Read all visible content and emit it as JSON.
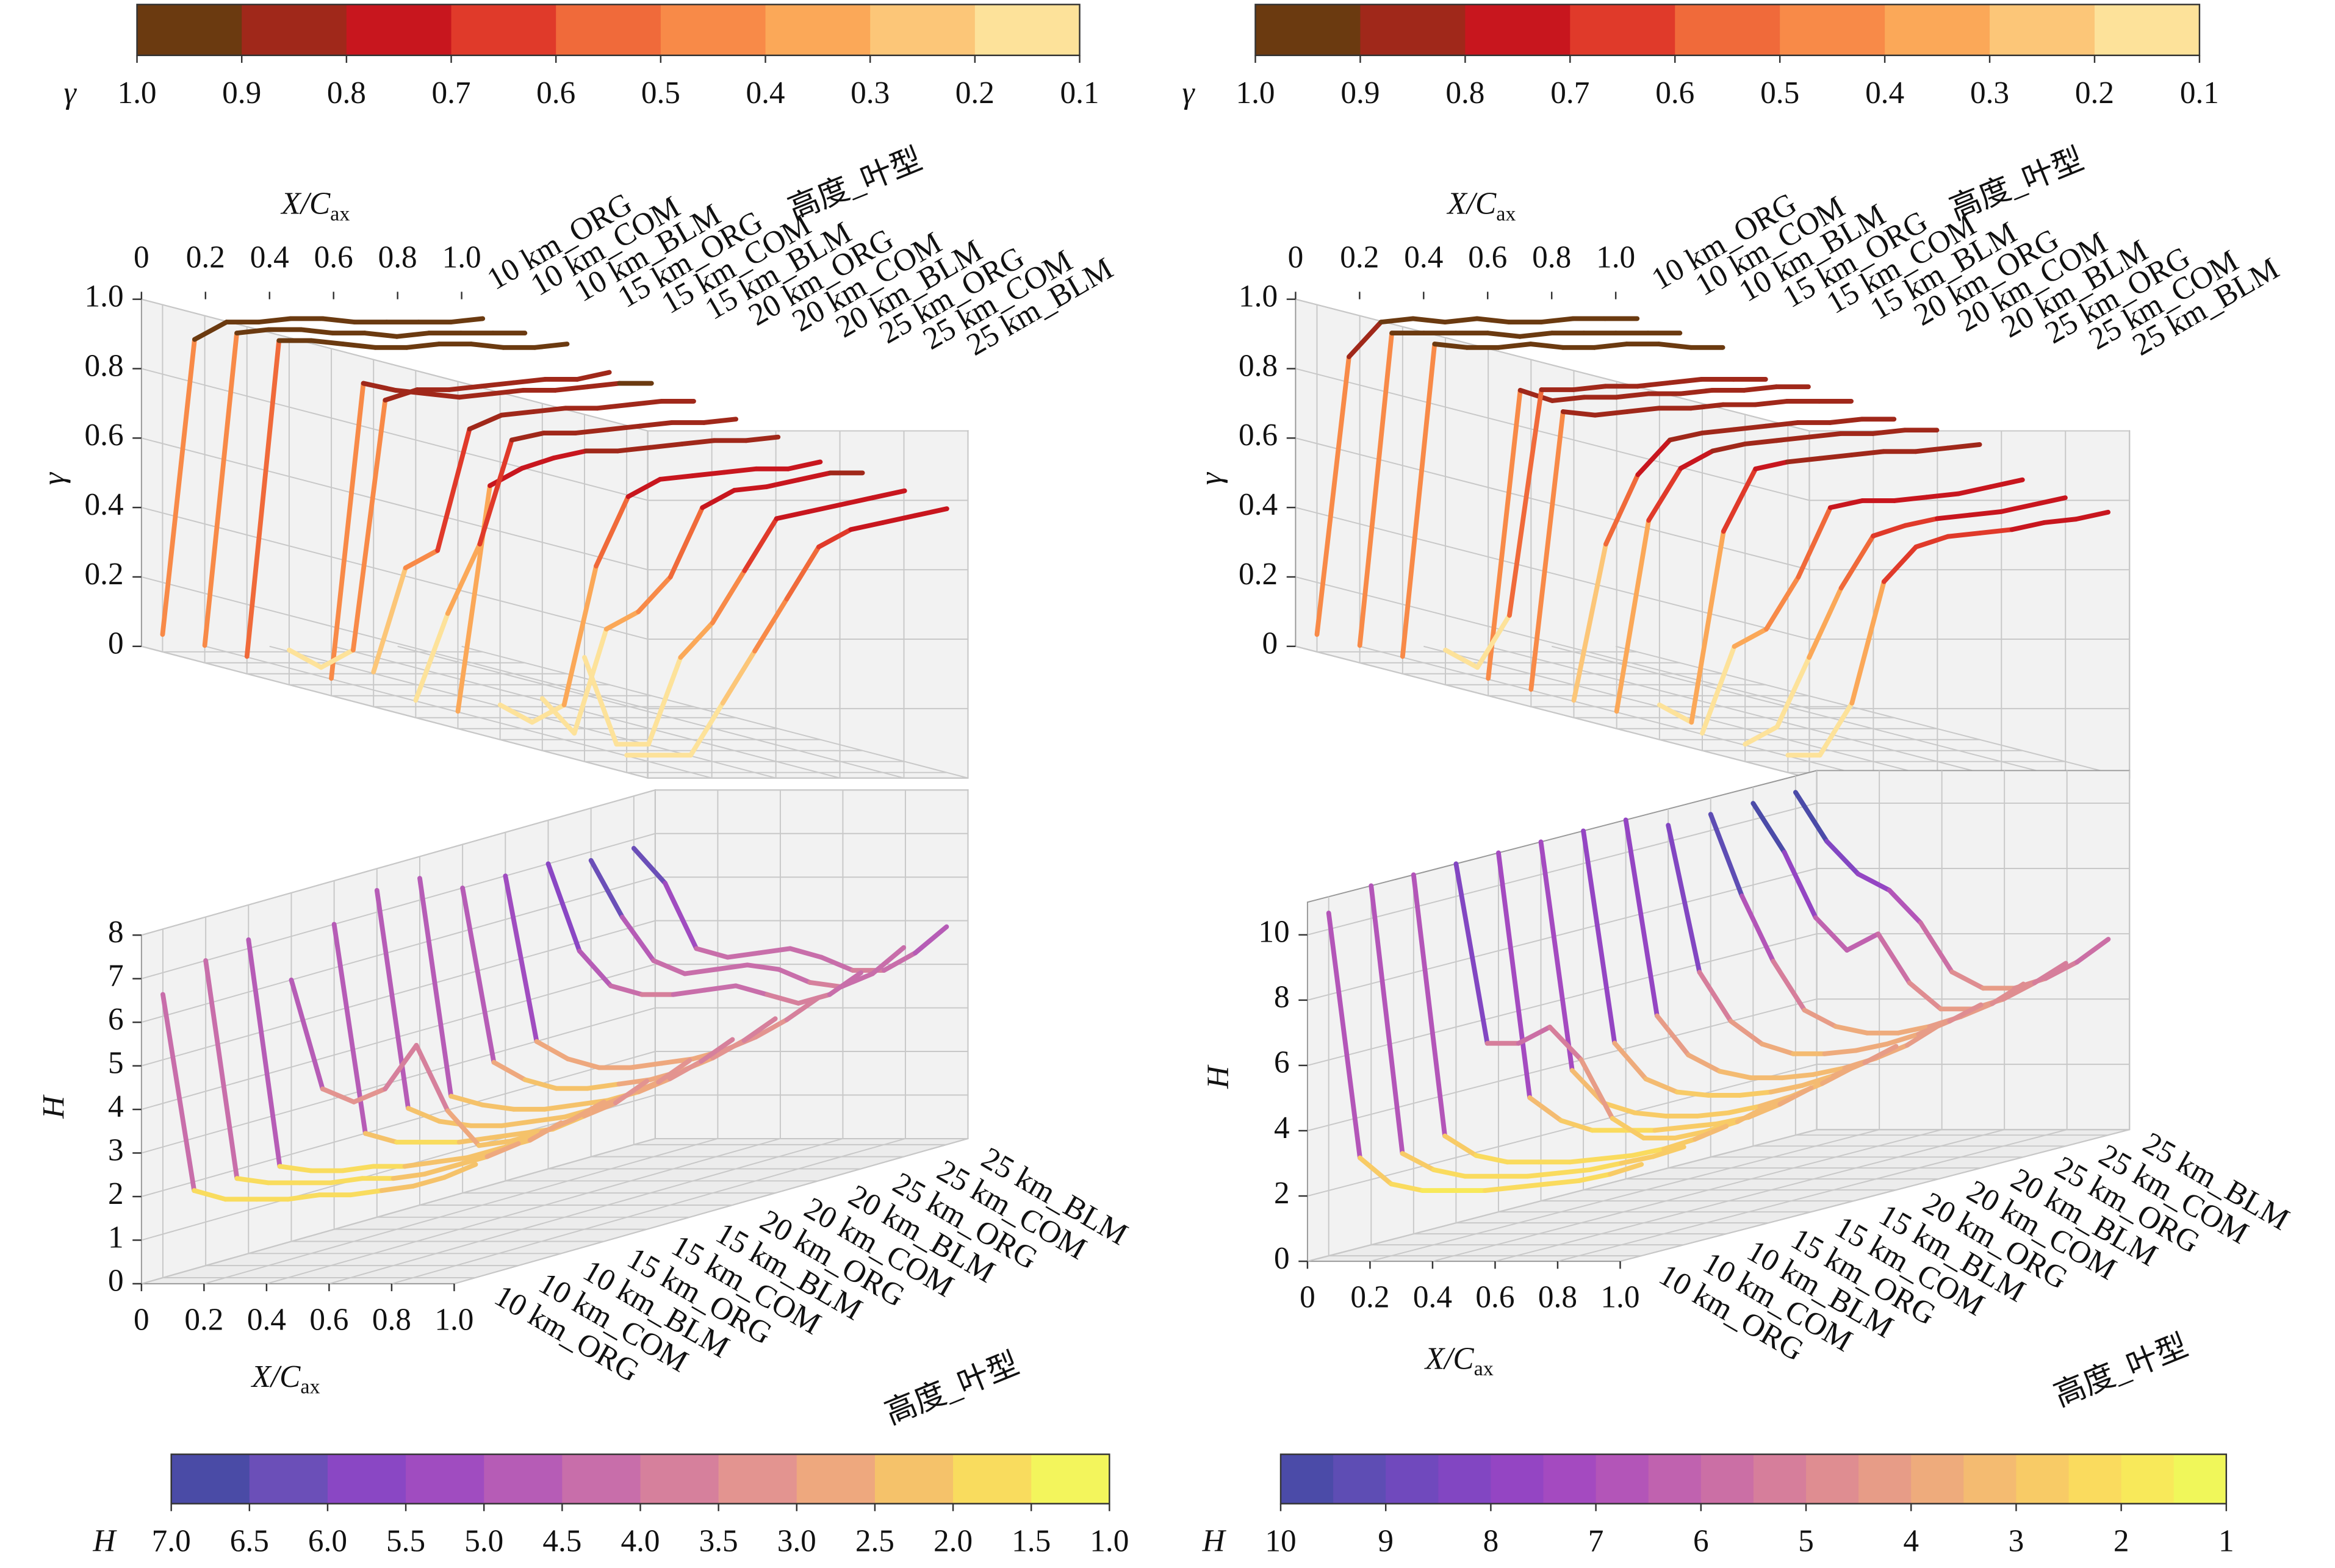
{
  "chart_data": [
    {
      "type": "line3d",
      "xlabel": "X/C",
      "xlabel_sub": "ax",
      "ylabel": "γ",
      "zlabel": "高度_叶型",
      "grid": true,
      "x": [
        0,
        0.1,
        0.2,
        0.3,
        0.4,
        0.5,
        0.6,
        0.7,
        0.8,
        0.9,
        1
      ],
      "xlim": [
        0,
        1
      ],
      "xticks": [
        0,
        0.2,
        0.4,
        0.6,
        0.8,
        {
          "value": 1,
          "label": "1.0"
        }
      ],
      "ylim": [
        0,
        1
      ],
      "yticks": [
        0,
        0.2,
        0.4,
        0.6,
        0.8,
        {
          "value": 1,
          "label": "1.0"
        }
      ],
      "series": [
        {
          "name": "10 km_ORG",
          "values": [
            0.05,
            0.9,
            0.95,
            0.95,
            0.96,
            0.96,
            0.95,
            0.95,
            0.95,
            0.95,
            0.96
          ]
        },
        {
          "name": "10 km_COM",
          "values": [
            0.05,
            0.95,
            0.96,
            0.96,
            0.95,
            0.95,
            0.94,
            0.95,
            0.95,
            0.95,
            0.95
          ]
        },
        {
          "name": "10 km_BLM",
          "values": [
            0.05,
            0.96,
            0.96,
            0.95,
            0.94,
            0.94,
            0.95,
            0.95,
            0.94,
            0.94,
            0.95
          ]
        },
        {
          "name": "15 km_ORG",
          "values": [
            0.1,
            0.05,
            0.1,
            0.82,
            0.85,
            0.85,
            0.86,
            0.87,
            0.88,
            0.88,
            0.9
          ]
        },
        {
          "name": "15 km_COM",
          "values": [
            0.05,
            0.9,
            0.88,
            0.87,
            0.86,
            0.87,
            0.88,
            0.88,
            0.89,
            0.9,
            0.9
          ]
        },
        {
          "name": "15 km_BLM",
          "values": [
            0.1,
            0.4,
            0.45,
            0.8,
            0.84,
            0.85,
            0.86,
            0.86,
            0.87,
            0.88,
            0.88
          ]
        },
        {
          "name": "20 km_ORG",
          "values": [
            0.05,
            0.3,
            0.5,
            0.8,
            0.82,
            0.82,
            0.83,
            0.84,
            0.85,
            0.85,
            0.86
          ]
        },
        {
          "name": "20 km_COM",
          "values": [
            0.05,
            0.7,
            0.75,
            0.78,
            0.8,
            0.8,
            0.81,
            0.82,
            0.83,
            0.83,
            0.84
          ]
        },
        {
          "name": "20 km_BLM",
          "values": [
            0.1,
            0.05,
            0.1,
            0.5,
            0.7,
            0.75,
            0.76,
            0.77,
            0.78,
            0.78,
            0.8
          ]
        },
        {
          "name": "25 km_ORG",
          "values": [
            0.15,
            0.05,
            0.35,
            0.4,
            0.5,
            0.7,
            0.75,
            0.76,
            0.78,
            0.8,
            0.8
          ]
        },
        {
          "name": "25 km_COM",
          "values": [
            0.3,
            0.05,
            0.05,
            0.3,
            0.4,
            0.55,
            0.7,
            0.72,
            0.74,
            0.76,
            0.78
          ]
        },
        {
          "name": "25 km_BLM",
          "values": [
            0.05,
            0.05,
            0.05,
            0.2,
            0.35,
            0.5,
            0.65,
            0.7,
            0.72,
            0.74,
            0.76
          ]
        }
      ],
      "colorbar": {
        "label": "γ",
        "lim": [
          1,
          0.1
        ],
        "ticks": [
          {
            "value": 1,
            "label": "1.0"
          },
          0.9,
          0.8,
          0.7,
          0.6,
          0.5,
          0.4,
          0.3,
          0.2,
          0.1
        ],
        "colors": [
          "#6b3a10",
          "#a0281a",
          "#c8161e",
          "#e03a2a",
          "#f06a3a",
          "#f88a48",
          "#fba858",
          "#fcc678",
          "#fde29a"
        ]
      }
    },
    {
      "type": "line3d",
      "xlabel": "X/C",
      "xlabel_sub": "ax",
      "ylabel": "γ",
      "zlabel": "高度_叶型",
      "grid": true,
      "x": [
        0,
        0.1,
        0.2,
        0.3,
        0.4,
        0.5,
        0.6,
        0.7,
        0.8,
        0.9,
        1
      ],
      "xlim": [
        0,
        1
      ],
      "xticks": [
        0,
        0.2,
        0.4,
        0.6,
        0.8,
        {
          "value": 1,
          "label": "1.0"
        }
      ],
      "ylim": [
        0,
        1
      ],
      "yticks": [
        0,
        0.2,
        0.4,
        0.6,
        0.8,
        {
          "value": 1,
          "label": "1.0"
        }
      ],
      "series": [
        {
          "name": "10 km_ORG",
          "values": [
            0.05,
            0.85,
            0.95,
            0.96,
            0.95,
            0.96,
            0.95,
            0.95,
            0.96,
            0.96,
            0.96
          ]
        },
        {
          "name": "10 km_COM",
          "values": [
            0.05,
            0.95,
            0.95,
            0.95,
            0.95,
            0.94,
            0.95,
            0.95,
            0.95,
            0.95,
            0.95
          ]
        },
        {
          "name": "10 km_BLM",
          "values": [
            0.05,
            0.95,
            0.94,
            0.94,
            0.95,
            0.94,
            0.94,
            0.95,
            0.95,
            0.94,
            0.94
          ]
        },
        {
          "name": "15 km_ORG",
          "values": [
            0.1,
            0.05,
            0.2,
            0.85,
            0.85,
            0.86,
            0.86,
            0.87,
            0.88,
            0.88,
            0.88
          ]
        },
        {
          "name": "15 km_COM",
          "values": [
            0.05,
            0.88,
            0.85,
            0.86,
            0.86,
            0.87,
            0.87,
            0.88,
            0.88,
            0.89,
            0.89
          ]
        },
        {
          "name": "15 km_BLM",
          "values": [
            0.05,
            0.85,
            0.84,
            0.85,
            0.86,
            0.86,
            0.87,
            0.87,
            0.88,
            0.88,
            0.88
          ]
        },
        {
          "name": "20 km_ORG",
          "values": [
            0.05,
            0.5,
            0.7,
            0.8,
            0.82,
            0.83,
            0.84,
            0.85,
            0.85,
            0.86,
            0.86
          ]
        },
        {
          "name": "20 km_COM",
          "values": [
            0.05,
            0.6,
            0.75,
            0.8,
            0.82,
            0.83,
            0.84,
            0.85,
            0.85,
            0.86,
            0.86
          ]
        },
        {
          "name": "20 km_BLM",
          "values": [
            0.1,
            0.05,
            0.6,
            0.78,
            0.8,
            0.81,
            0.82,
            0.83,
            0.83,
            0.84,
            0.85
          ]
        },
        {
          "name": "25 km_ORG",
          "values": [
            0.05,
            0.3,
            0.35,
            0.5,
            0.7,
            0.72,
            0.72,
            0.73,
            0.74,
            0.76,
            0.78
          ]
        },
        {
          "name": "25 km_COM",
          "values": [
            0.05,
            0.1,
            0.3,
            0.5,
            0.65,
            0.68,
            0.7,
            0.71,
            0.72,
            0.74,
            0.76
          ]
        },
        {
          "name": "25 km_BLM",
          "values": [
            0.05,
            0.05,
            0.2,
            0.55,
            0.65,
            0.68,
            0.69,
            0.7,
            0.72,
            0.73,
            0.75
          ]
        }
      ],
      "colorbar": {
        "label": "γ",
        "lim": [
          1,
          0.1
        ],
        "ticks": [
          {
            "value": 1,
            "label": "1.0"
          },
          0.9,
          0.8,
          0.7,
          0.6,
          0.5,
          0.4,
          0.3,
          0.2,
          0.1
        ],
        "colors": [
          "#6b3a10",
          "#a0281a",
          "#c8161e",
          "#e03a2a",
          "#f06a3a",
          "#f88a48",
          "#fba858",
          "#fcc678",
          "#fde29a"
        ]
      }
    },
    {
      "type": "line3d",
      "xlabel": "X/C",
      "xlabel_sub": "ax",
      "ylabel": "H",
      "zlabel": "高度_叶型",
      "grid": true,
      "x": [
        0,
        0.1,
        0.2,
        0.3,
        0.4,
        0.5,
        0.6,
        0.7,
        0.8,
        0.9,
        1
      ],
      "xlim": [
        0,
        1
      ],
      "xticks": [
        0,
        0.2,
        0.4,
        0.6,
        0.8,
        {
          "value": 1,
          "label": "1.0"
        }
      ],
      "ylim": [
        0,
        8
      ],
      "yticks": [
        0,
        1,
        2,
        3,
        4,
        5,
        6,
        7,
        8
      ],
      "series": [
        {
          "name": "10 km_ORG",
          "values": [
            6.5,
            2,
            1.8,
            1.8,
            1.8,
            1.9,
            1.9,
            2,
            2.1,
            2.3,
            2.6
          ]
        },
        {
          "name": "10 km_COM",
          "values": [
            7,
            2,
            1.9,
            1.9,
            1.9,
            2,
            2,
            2.1,
            2.3,
            2.5,
            2.8
          ]
        },
        {
          "name": "10 km_BLM",
          "values": [
            7.2,
            2,
            1.9,
            1.9,
            2,
            2,
            2.1,
            2.2,
            2.4,
            2.6,
            3
          ]
        },
        {
          "name": "15 km_ORG",
          "values": [
            6,
            3.5,
            3.2,
            3.5,
            4.5,
            3,
            2.2,
            2.3,
            2.5,
            2.8,
            3.2
          ]
        },
        {
          "name": "15 km_COM",
          "values": [
            7,
            2.2,
            2,
            2,
            2,
            2.1,
            2.2,
            2.3,
            2.6,
            2.9,
            3.4
          ]
        },
        {
          "name": "15 km_BLM",
          "values": [
            7.5,
            2.5,
            2.2,
            2.1,
            2.1,
            2.2,
            2.3,
            2.5,
            2.8,
            3.1,
            3.6
          ]
        },
        {
          "name": "20 km_ORG",
          "values": [
            7.5,
            2.5,
            2.3,
            2.2,
            2.2,
            2.3,
            2.4,
            2.6,
            2.9,
            3.3,
            3.8
          ]
        },
        {
          "name": "20 km_COM",
          "values": [
            7,
            3,
            2.6,
            2.4,
            2.4,
            2.5,
            2.6,
            2.8,
            3.1,
            3.5,
            4
          ]
        },
        {
          "name": "20 km_BLM",
          "values": [
            7,
            3.2,
            2.8,
            2.6,
            2.6,
            2.7,
            2.8,
            3,
            3.3,
            3.7,
            4.2
          ]
        },
        {
          "name": "25 km_ORG",
          "values": [
            7,
            5,
            4.2,
            4,
            4,
            4.1,
            4.2,
            4,
            3.8,
            4,
            4.5
          ]
        },
        {
          "name": "25 km_COM",
          "values": [
            6.8,
            5.5,
            4.5,
            4.2,
            4.3,
            4.4,
            4.3,
            4,
            3.9,
            4.2,
            4.8
          ]
        },
        {
          "name": "25 km_BLM",
          "values": [
            6.8,
            6,
            4.5,
            4.3,
            4.4,
            4.5,
            4.3,
            4,
            4,
            4.4,
            5
          ]
        }
      ],
      "colorbar": {
        "label": "H",
        "lim": [
          7,
          1
        ],
        "ticks": [
          {
            "value": 7,
            "label": "7.0"
          },
          6.5,
          {
            "value": 6,
            "label": "6.0"
          },
          5.5,
          {
            "value": 5,
            "label": "5.0"
          },
          4.5,
          {
            "value": 4,
            "label": "4.0"
          },
          3.5,
          {
            "value": 3,
            "label": "3.0"
          },
          2.5,
          {
            "value": 2,
            "label": "2.0"
          },
          1.5,
          {
            "value": 1,
            "label": "1.0"
          }
        ],
        "colors": [
          "#4a4ba6",
          "#6b4fb8",
          "#8a47c4",
          "#a04cc0",
          "#b65cb6",
          "#c86eaa",
          "#d6809c",
          "#e39490",
          "#eea87e",
          "#f5c26a",
          "#f9dc5e",
          "#f3f55c"
        ]
      }
    },
    {
      "type": "line3d",
      "xlabel": "X/C",
      "xlabel_sub": "ax",
      "ylabel": "H",
      "zlabel": "高度_叶型",
      "grid": true,
      "x": [
        0,
        0.1,
        0.2,
        0.3,
        0.4,
        0.5,
        0.6,
        0.7,
        0.8,
        0.9,
        1
      ],
      "xlim": [
        0,
        1
      ],
      "xticks": [
        0,
        0.2,
        0.4,
        0.6,
        0.8,
        {
          "value": 1,
          "label": "1.0"
        }
      ],
      "ylim": [
        0,
        11
      ],
      "yticks": [
        0,
        2,
        4,
        6,
        8,
        10
      ],
      "series": [
        {
          "name": "10 km_ORG",
          "values": [
            10.5,
            3,
            2.2,
            2,
            2,
            2,
            2.1,
            2.2,
            2.3,
            2.5,
            2.8
          ]
        },
        {
          "name": "10 km_COM",
          "values": [
            11,
            2.8,
            2.3,
            2.1,
            2.1,
            2.1,
            2.2,
            2.3,
            2.5,
            2.7,
            3
          ]
        },
        {
          "name": "10 km_BLM",
          "values": [
            11,
            3,
            2.4,
            2.2,
            2.2,
            2.2,
            2.3,
            2.4,
            2.6,
            2.9,
            3.3
          ]
        },
        {
          "name": "15 km_ORG",
          "values": [
            11,
            5.5,
            5.5,
            6,
            5,
            3.2,
            2.6,
            2.6,
            2.8,
            3.1,
            3.6
          ]
        },
        {
          "name": "15 km_COM",
          "values": [
            11,
            3.5,
            2.8,
            2.5,
            2.5,
            2.5,
            2.6,
            2.7,
            2.9,
            3.3,
            3.8
          ]
        },
        {
          "name": "15 km_BLM",
          "values": [
            11,
            4,
            3,
            2.7,
            2.6,
            2.6,
            2.7,
            2.9,
            3.2,
            3.6,
            4.1
          ]
        },
        {
          "name": "20 km_ORG",
          "values": [
            11,
            4.5,
            3.4,
            3,
            2.9,
            2.9,
            3,
            3.2,
            3.5,
            3.9,
            4.4
          ]
        },
        {
          "name": "20 km_COM",
          "values": [
            11,
            5,
            3.8,
            3.3,
            3.1,
            3.1,
            3.2,
            3.4,
            3.7,
            4.1,
            4.7
          ]
        },
        {
          "name": "20 km_BLM",
          "values": [
            10.5,
            6,
            4.5,
            3.8,
            3.5,
            3.5,
            3.6,
            3.8,
            4.1,
            4.5,
            5
          ]
        },
        {
          "name": "25 km_ORG",
          "values": [
            10.5,
            8,
            6,
            4.5,
            4,
            3.8,
            3.8,
            4,
            4.3,
            4.7,
            5.3
          ]
        },
        {
          "name": "25 km_COM",
          "values": [
            10.5,
            9,
            7,
            6,
            6.5,
            5,
            4.2,
            4.2,
            4.5,
            5,
            5.6
          ]
        },
        {
          "name": "25 km_BLM",
          "values": [
            10.5,
            9,
            8,
            7.5,
            6.5,
            5,
            4.5,
            4.5,
            4.8,
            5.3,
            6
          ]
        }
      ],
      "colorbar": {
        "label": "H",
        "lim": [
          10,
          1
        ],
        "ticks": [
          10,
          9,
          8,
          7,
          6,
          5,
          4,
          3,
          2,
          1
        ],
        "colors": [
          "#4b4ba8",
          "#5e4db4",
          "#7049bd",
          "#8246c2",
          "#9445c3",
          "#a44ac0",
          "#b355b8",
          "#c062af",
          "#cb6fa5",
          "#d67e9b",
          "#df8d91",
          "#e79c87",
          "#eeab7c",
          "#f4bb71",
          "#f8cb66",
          "#fadb5e",
          "#f8e95a",
          "#f0f75a"
        ]
      }
    }
  ]
}
